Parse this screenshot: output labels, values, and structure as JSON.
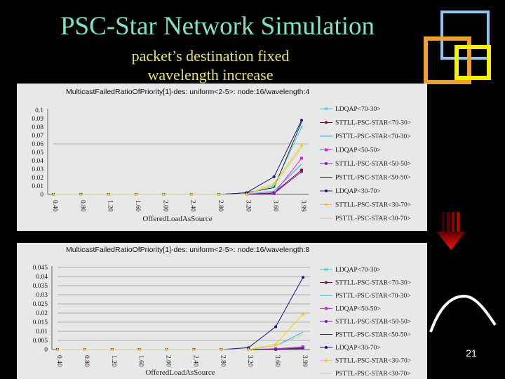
{
  "slide": {
    "title": "PSC-Star Network Simulation",
    "subtitle_line1": "packet’s destination fixed",
    "subtitle_line2": "wavelength increase",
    "page_number": "21",
    "colors": {
      "background": "#000000",
      "title": "#7fe3c8",
      "subtitle": "#e8e070",
      "arrow": "#e01010",
      "deco_blue": "#8ec6f2",
      "deco_orange": "#f0a030",
      "deco_yellow": "#f5f000"
    },
    "icons": [
      "down-arrow-icon",
      "curve-icon",
      "nested-squares-icon"
    ]
  },
  "chart_data": [
    {
      "type": "line",
      "title": "MulticastFailedRatioOfPriority[1]-des: uniform<2-5>: node:16/wavelength:4",
      "xlabel": "OfferedLoadAsSource",
      "ylabel": "",
      "x": [
        "0.40",
        "0.80",
        "1.20",
        "1.60",
        "2.00",
        "2.40",
        "2.80",
        "3.20",
        "3.60",
        "3.99"
      ],
      "yticks": [
        "0",
        "0.01",
        "0.02",
        "0.03",
        "0.04",
        "0.05",
        "0.06",
        "0.07",
        "0.08",
        "0.09",
        "0.1"
      ],
      "ylim": [
        0,
        0.1
      ],
      "grid": "horizontal at 0.06",
      "legend_position": "right",
      "series": [
        {
          "name": "LDQAP<70-30>",
          "color": "#40d0d0",
          "marker": "x",
          "values": [
            0,
            0,
            0,
            0,
            0,
            0,
            0,
            0,
            0.01,
            0.08
          ]
        },
        {
          "name": "STTLL-PSC-STAR<70-30>",
          "color": "#800040",
          "marker": "dot",
          "values": [
            0,
            0,
            0,
            0,
            0,
            0,
            0,
            0,
            0.002,
            0.029
          ]
        },
        {
          "name": "PSTTL-PSC-STAR<70-30>",
          "color": "#1fb0d8",
          "marker": "none",
          "values": [
            0,
            0,
            0,
            0,
            0,
            0,
            0,
            0,
            0.004,
            0.036
          ]
        },
        {
          "name": "LDQAP<50-50>",
          "color": "#e020e0",
          "marker": "square",
          "values": [
            0,
            0,
            0,
            0,
            0,
            0,
            0,
            0,
            0.001,
            0.043
          ]
        },
        {
          "name": "STTLL-PSC-STAR<50-50>",
          "color": "#6a2aa0",
          "marker": "dot",
          "values": [
            0,
            0,
            0,
            0,
            0,
            0,
            0,
            0,
            0.001,
            0.027
          ]
        },
        {
          "name": "PSTTL-PSC-STAR<50-50>",
          "color": "#303030",
          "marker": "none",
          "values": [
            0,
            0,
            0,
            0,
            0,
            0,
            0,
            0.002,
            0.008,
            0.086
          ]
        },
        {
          "name": "LDQAP<30-70>",
          "color": "#101880",
          "marker": "dot",
          "values": [
            0,
            0,
            0,
            0,
            0,
            0,
            0,
            0.002,
            0.021,
            0.088
          ]
        },
        {
          "name": "STTLL-PSC-STAR<30-70>",
          "color": "#f0d000",
          "marker": "triangle",
          "values": [
            0,
            0,
            0,
            0,
            0,
            0,
            0,
            0,
            0.013,
            0.058
          ]
        },
        {
          "name": "PSTTL-PSC-STAR<30-70>",
          "color": "#d0d0a0",
          "marker": "none",
          "values": [
            0,
            0,
            0,
            0,
            0,
            0,
            0,
            0,
            0.011,
            0.055
          ]
        }
      ]
    },
    {
      "type": "line",
      "title": "MulticastFailedRatioOfPriority[1]-des: uniform<2-5>: node:16/wavelength:8",
      "xlabel": "OfferedLoadAsSource",
      "ylabel": "",
      "x": [
        "0.40",
        "0.80",
        "1.20",
        "1.60",
        "2.00",
        "2.40",
        "2.80",
        "3.20",
        "3.60",
        "3.99"
      ],
      "yticks": [
        "0",
        "0.005",
        "0.01",
        "0.015",
        "0.02",
        "0.025",
        "0.03",
        "0.035",
        "0.04",
        "0.045"
      ],
      "ylim": [
        0,
        0.045
      ],
      "grid": "horizontal",
      "legend_position": "right",
      "series": [
        {
          "name": "LDQAP<70-30>",
          "color": "#40d0d0",
          "marker": "x",
          "values": [
            0,
            0,
            0,
            0,
            0,
            0,
            0,
            0,
            0.0002,
            0.001
          ]
        },
        {
          "name": "STTLL-PSC-STAR<70-30>",
          "color": "#800040",
          "marker": "dot",
          "values": [
            0,
            0,
            0,
            0,
            0,
            0,
            0,
            0,
            0,
            0.001
          ]
        },
        {
          "name": "PSTTL-PSC-STAR<70-30>",
          "color": "#1fb0d8",
          "marker": "none",
          "values": [
            0,
            0,
            0,
            0,
            0,
            0,
            0,
            0,
            0.002,
            0.0095
          ]
        },
        {
          "name": "LDQAP<50-50>",
          "color": "#e020e0",
          "marker": "square",
          "values": [
            0,
            0,
            0,
            0,
            0,
            0,
            0,
            0,
            0.0005,
            0.0015
          ]
        },
        {
          "name": "STTLL-PSC-STAR<50-50>",
          "color": "#6a2aa0",
          "marker": "dot",
          "values": [
            0,
            0,
            0,
            0,
            0,
            0,
            0,
            0,
            0.0002,
            0.0008
          ]
        },
        {
          "name": "PSTTL-PSC-STAR<50-50>",
          "color": "#303030",
          "marker": "none",
          "values": [
            0,
            0,
            0,
            0,
            0,
            0,
            0,
            0,
            0.0001,
            0.0005
          ]
        },
        {
          "name": "LDQAP<30-70>",
          "color": "#101880",
          "marker": "dot",
          "values": [
            0,
            0,
            0,
            0,
            0,
            0,
            0,
            0.001,
            0.0125,
            0.0395
          ]
        },
        {
          "name": "STTLL-PSC-STAR<30-70>",
          "color": "#f0d000",
          "marker": "triangle",
          "values": [
            0,
            0,
            0,
            0,
            0,
            0,
            0,
            0,
            0.003,
            0.0195
          ]
        },
        {
          "name": "PSTTL-PSC-STAR<30-70>",
          "color": "#d0d0a0",
          "marker": "none",
          "values": [
            0,
            0,
            0,
            0,
            0,
            0,
            0,
            0,
            0.002,
            0.008
          ]
        }
      ]
    }
  ]
}
